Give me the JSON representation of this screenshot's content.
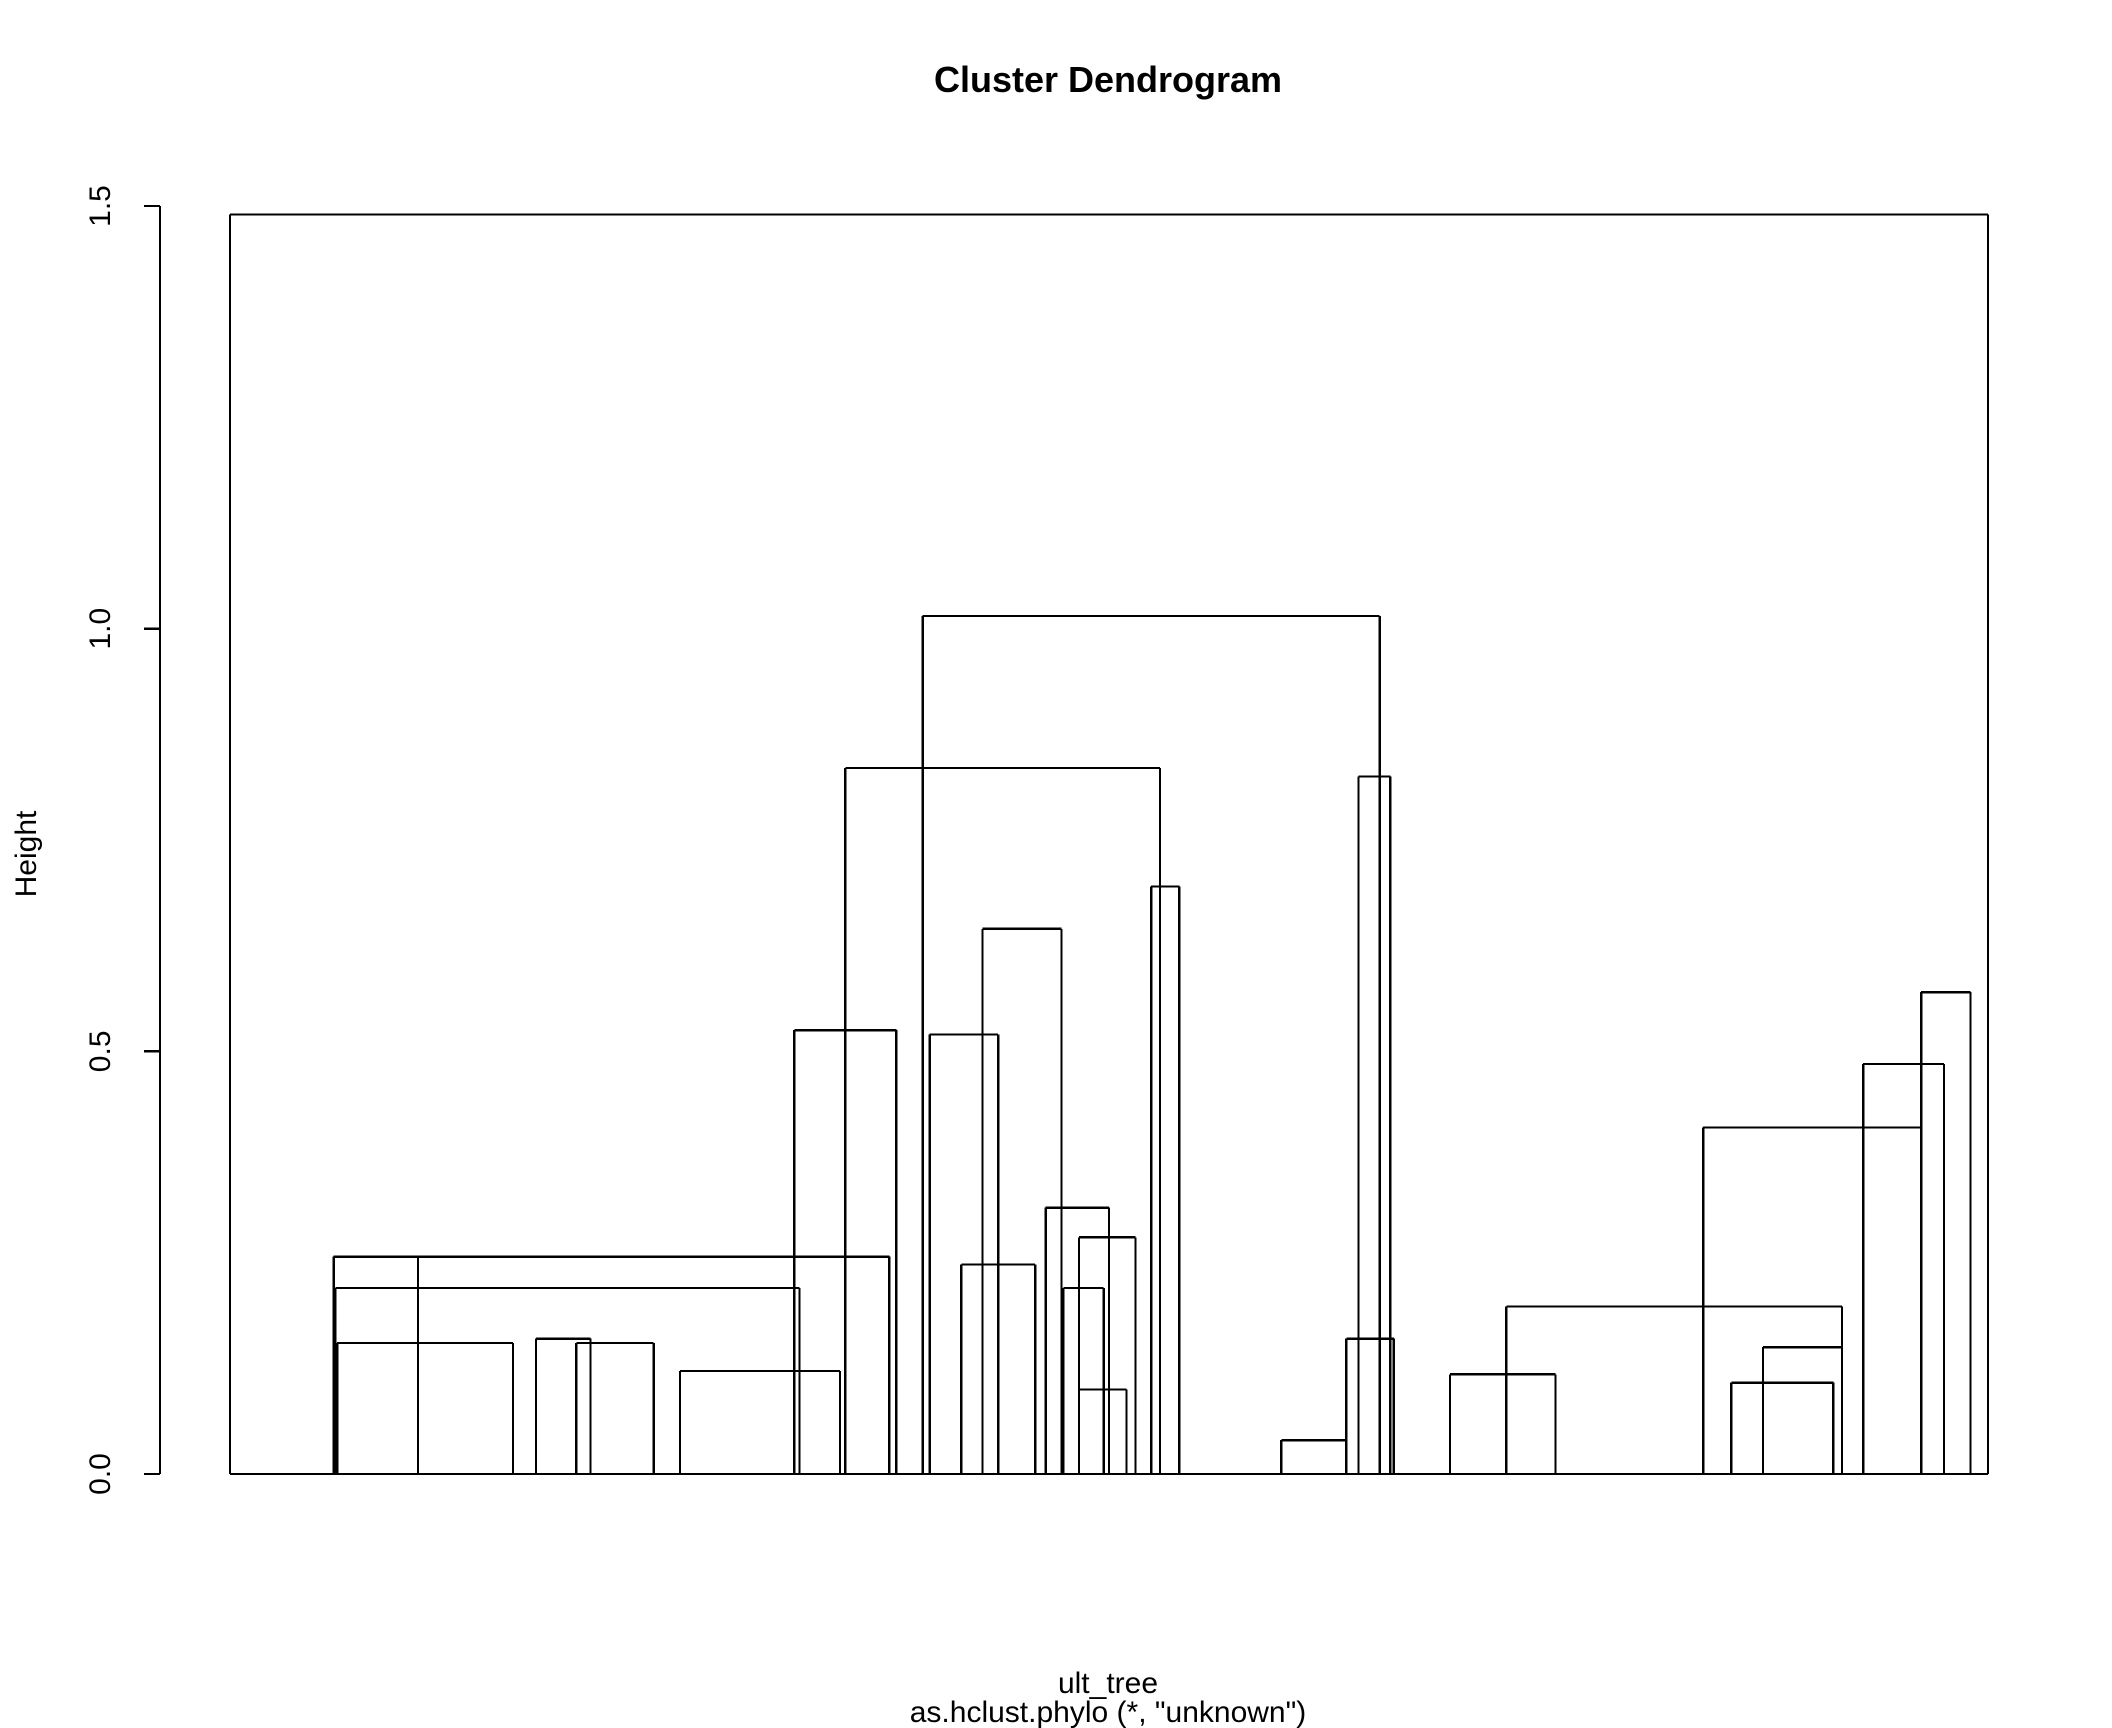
{
  "chart_data": {
    "type": "dendrogram",
    "title": "Cluster Dendrogram",
    "xlabel": "ult_tree",
    "sub": "as.hclust.phylo (*, \"unknown\")",
    "ylabel": "Height",
    "ylim": [
      0,
      1.5
    ],
    "yticks": [
      {
        "value": 0.0,
        "label": "0.0"
      },
      {
        "value": 0.5,
        "label": "0.5"
      },
      {
        "value": 1.0,
        "label": "1.0"
      },
      {
        "value": 1.5,
        "label": "1.5"
      }
    ],
    "leaf_range": [
      0,
      1000
    ],
    "merges": [
      {
        "x1": 0,
        "x2": 1000,
        "h": 1.49
      },
      {
        "x1": 394,
        "x2": 654,
        "h": 1.015
      },
      {
        "x1": 350,
        "x2": 529,
        "h": 0.835
      },
      {
        "x1": 642,
        "x2": 660,
        "h": 0.825
      },
      {
        "x1": 428,
        "x2": 473,
        "h": 0.645
      },
      {
        "x1": 524,
        "x2": 540,
        "h": 0.695
      },
      {
        "x1": 1000,
        "x2": 1000,
        "h": 0.57
      },
      {
        "x1": 962,
        "x2": 990,
        "h": 0.57
      },
      {
        "x1": 929,
        "x2": 975,
        "h": 0.485
      },
      {
        "x1": 838,
        "x2": 962,
        "h": 0.41
      },
      {
        "x1": 321,
        "x2": 379,
        "h": 0.525
      },
      {
        "x1": 398,
        "x2": 437,
        "h": 0.52
      },
      {
        "x1": 59,
        "x2": 375,
        "h": 0.257
      },
      {
        "x1": 107,
        "x2": 375,
        "h": 0.257
      },
      {
        "x1": 60,
        "x2": 324,
        "h": 0.22
      },
      {
        "x1": 416,
        "x2": 458,
        "h": 0.248
      },
      {
        "x1": 464,
        "x2": 500,
        "h": 0.315
      },
      {
        "x1": 483,
        "x2": 515,
        "h": 0.28
      },
      {
        "x1": 474,
        "x2": 497,
        "h": 0.22
      },
      {
        "x1": 483,
        "x2": 510,
        "h": 0.1
      },
      {
        "x1": 726,
        "x2": 917,
        "h": 0.198
      },
      {
        "x1": 872,
        "x2": 917,
        "h": 0.15
      },
      {
        "x1": 694,
        "x2": 754,
        "h": 0.118
      },
      {
        "x1": 854,
        "x2": 912,
        "h": 0.108
      },
      {
        "x1": 635,
        "x2": 662,
        "h": 0.16
      },
      {
        "x1": 598,
        "x2": 635,
        "h": 0.04
      },
      {
        "x1": 61,
        "x2": 161,
        "h": 0.155
      },
      {
        "x1": 197,
        "x2": 241,
        "h": 0.155
      },
      {
        "x1": 174,
        "x2": 205,
        "h": 0.16
      },
      {
        "x1": 256,
        "x2": 347,
        "h": 0.122
      }
    ],
    "notes": "Approximate reconstruction of a large R hclust dendrogram; leaf positions are normalized along the x axis."
  }
}
